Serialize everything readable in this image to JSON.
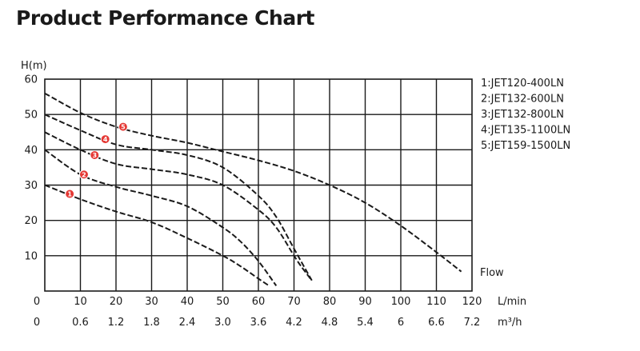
{
  "title": "Product Performance Chart",
  "chart_data": {
    "type": "line",
    "title": "Product Performance Chart",
    "ylabel": "H(m)",
    "xlabel": "Flow",
    "x_unit_primary": "L/min",
    "x_unit_secondary": "m³/h",
    "xlim": [
      0,
      120
    ],
    "ylim": [
      0,
      60
    ],
    "grid": true,
    "legend_position": "right",
    "x_ticks": [
      "0",
      "10",
      "20",
      "30",
      "40",
      "50",
      "60",
      "70",
      "80",
      "90",
      "100",
      "110",
      "120"
    ],
    "x2_ticks": [
      "0",
      "0.6",
      "1.2",
      "1.8",
      "2.4",
      "3.0",
      "3.6",
      "4.2",
      "4.8",
      "5.4",
      "6",
      "6.6",
      "7.2"
    ],
    "y_ticks": [
      "10",
      "20",
      "30",
      "40",
      "50",
      "60"
    ],
    "series": [
      {
        "name": "1:JET120-400LN",
        "marker_label": "1",
        "marker_at": [
          7,
          27.5
        ],
        "x": [
          0,
          10,
          20,
          30,
          40,
          50,
          55,
          60,
          63
        ],
        "y": [
          30,
          26,
          22.5,
          19.5,
          15,
          10,
          7,
          3.5,
          1.5
        ]
      },
      {
        "name": "2:JET132-600LN",
        "marker_label": "2",
        "marker_at": [
          11,
          33
        ],
        "x": [
          0,
          10,
          20,
          30,
          40,
          50,
          55,
          60,
          65
        ],
        "y": [
          40,
          33,
          29.5,
          27,
          24,
          18,
          14,
          8.5,
          1.5
        ]
      },
      {
        "name": "3:JET132-800LN",
        "marker_label": "3",
        "marker_at": [
          14,
          38.5
        ],
        "x": [
          0,
          10,
          20,
          30,
          40,
          50,
          60,
          65,
          70,
          72,
          75
        ],
        "y": [
          45,
          40,
          36,
          34.5,
          33,
          30,
          23,
          18,
          10,
          7,
          3
        ]
      },
      {
        "name": "4:JET135-1100LN",
        "marker_label": "4",
        "marker_at": [
          17,
          43
        ],
        "x": [
          0,
          10,
          20,
          30,
          40,
          50,
          60,
          65,
          70,
          75
        ],
        "y": [
          50,
          45.5,
          41.5,
          40,
          38.5,
          35,
          27,
          21,
          12,
          3
        ]
      },
      {
        "name": "5:JET159-1500LN",
        "marker_label": "5",
        "marker_at": [
          22,
          46.5
        ],
        "x": [
          0,
          10,
          20,
          30,
          40,
          50,
          60,
          70,
          80,
          90,
          100,
          110,
          117
        ],
        "y": [
          56,
          50.5,
          46.5,
          44,
          42,
          39.5,
          37,
          34,
          30,
          25,
          18.5,
          11,
          5.5
        ]
      }
    ]
  }
}
